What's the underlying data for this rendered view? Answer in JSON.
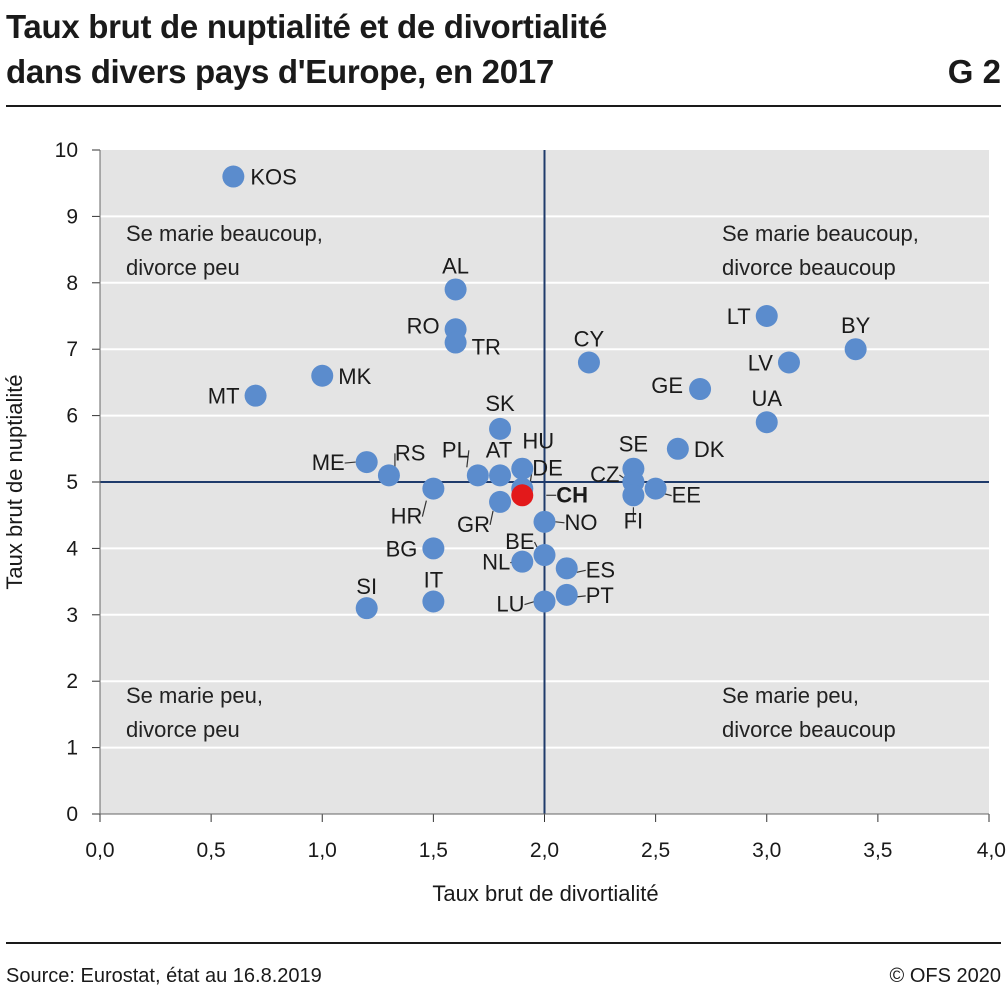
{
  "header": {
    "title_line1": "Taux brut de nuptialité et de divortialité",
    "title_line2": "dans divers pays d'Europe, en 2017",
    "figure_number": "G 2"
  },
  "footer": {
    "source": "Source: Eurostat, état au 16.8.2019",
    "copyright": "© OFS 2020"
  },
  "chart_data": {
    "type": "scatter",
    "xlabel": "Taux brut de divortialité",
    "ylabel": "Taux brut de nuptialité",
    "xlim": [
      0,
      4
    ],
    "ylim": [
      0,
      10
    ],
    "x_ticks": [
      "0,0",
      "0,5",
      "1,0",
      "1,5",
      "2,0",
      "2,5",
      "3,0",
      "3,5",
      "4,0"
    ],
    "y_ticks": [
      "0",
      "1",
      "2",
      "3",
      "4",
      "5",
      "6",
      "7",
      "8",
      "9",
      "10"
    ],
    "reference_lines": {
      "x": 2.0,
      "y": 5.0
    },
    "grid": "horizontal",
    "quadrant_labels": {
      "top_left": [
        "Se marie beaucoup,",
        "divorce peu"
      ],
      "top_right": [
        "Se marie beaucoup,",
        "divorce beaucoup"
      ],
      "bottom_left": [
        "Se marie peu,",
        "divorce peu"
      ],
      "bottom_right": [
        "Se marie peu,",
        "divorce beaucoup"
      ]
    },
    "colors": {
      "point": "#5b8ccd",
      "highlight": "#e3191b",
      "plot_bg": "#e4e4e4",
      "reference_line": "#1f3b6b",
      "grid": "#ffffff"
    },
    "points": [
      {
        "label": "KOS",
        "x": 0.6,
        "y": 9.6
      },
      {
        "label": "AL",
        "x": 1.6,
        "y": 7.9
      },
      {
        "label": "RO",
        "x": 1.6,
        "y": 7.3
      },
      {
        "label": "TR",
        "x": 1.6,
        "y": 7.1
      },
      {
        "label": "CY",
        "x": 2.2,
        "y": 6.8
      },
      {
        "label": "MK",
        "x": 1.0,
        "y": 6.6
      },
      {
        "label": "MT",
        "x": 0.7,
        "y": 6.3
      },
      {
        "label": "LT",
        "x": 3.0,
        "y": 7.5
      },
      {
        "label": "BY",
        "x": 3.4,
        "y": 7.0
      },
      {
        "label": "LV",
        "x": 3.1,
        "y": 6.8
      },
      {
        "label": "GE",
        "x": 2.7,
        "y": 6.4
      },
      {
        "label": "UA",
        "x": 3.0,
        "y": 5.9
      },
      {
        "label": "SK",
        "x": 1.8,
        "y": 5.8
      },
      {
        "label": "DK",
        "x": 2.6,
        "y": 5.5
      },
      {
        "label": "ME",
        "x": 1.2,
        "y": 5.3
      },
      {
        "label": "RS",
        "x": 1.3,
        "y": 5.1
      },
      {
        "label": "PL",
        "x": 1.7,
        "y": 5.1
      },
      {
        "label": "AT",
        "x": 1.8,
        "y": 5.1
      },
      {
        "label": "HU",
        "x": 1.9,
        "y": 5.2
      },
      {
        "label": "DE",
        "x": 1.9,
        "y": 4.9
      },
      {
        "label": "SE",
        "x": 2.4,
        "y": 5.2
      },
      {
        "label": "CZ",
        "x": 2.4,
        "y": 5.0
      },
      {
        "label": "FI",
        "x": 2.4,
        "y": 4.8
      },
      {
        "label": "EE",
        "x": 2.5,
        "y": 4.9
      },
      {
        "label": "HR",
        "x": 1.5,
        "y": 4.9
      },
      {
        "label": "GR",
        "x": 1.8,
        "y": 4.7
      },
      {
        "label": "CH",
        "x": 1.9,
        "y": 4.8,
        "highlight": true
      },
      {
        "label": "NO",
        "x": 2.0,
        "y": 4.4
      },
      {
        "label": "BG",
        "x": 1.5,
        "y": 4.0
      },
      {
        "label": "BE",
        "x": 2.0,
        "y": 3.9
      },
      {
        "label": "NL",
        "x": 1.9,
        "y": 3.8
      },
      {
        "label": "ES",
        "x": 2.1,
        "y": 3.7
      },
      {
        "label": "SI",
        "x": 1.2,
        "y": 3.1
      },
      {
        "label": "IT",
        "x": 1.5,
        "y": 3.2
      },
      {
        "label": "LU",
        "x": 2.0,
        "y": 3.2
      },
      {
        "label": "PT",
        "x": 2.1,
        "y": 3.3
      }
    ]
  }
}
